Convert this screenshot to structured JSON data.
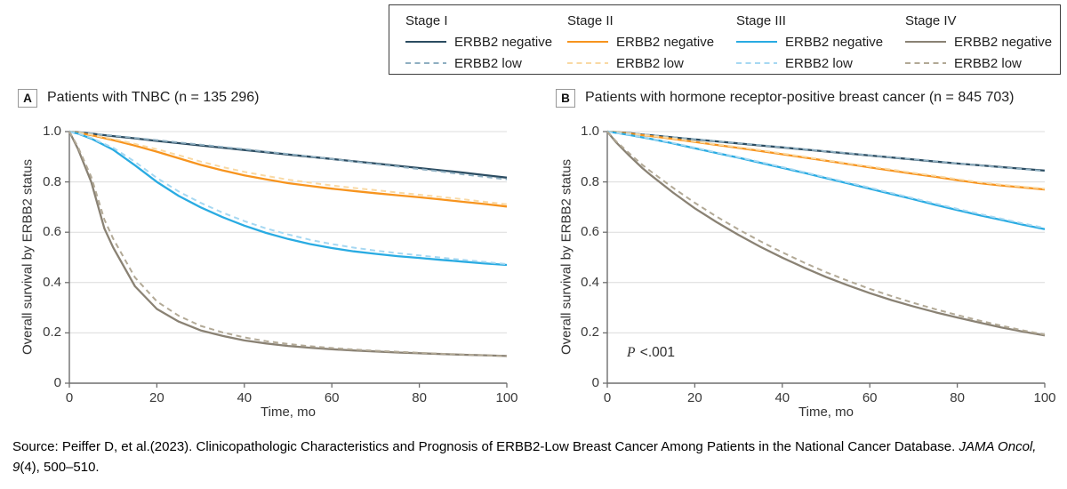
{
  "legend": {
    "groups": [
      {
        "stage": "Stage I",
        "negative_label": "ERBB2 negative",
        "low_label": "ERBB2 low",
        "negative_color": "#2b4c61",
        "low_color": "#8fafc1"
      },
      {
        "stage": "Stage II",
        "negative_label": "ERBB2 negative",
        "low_label": "ERBB2 low",
        "negative_color": "#f7941e",
        "low_color": "#f9d9a4"
      },
      {
        "stage": "Stage III",
        "negative_label": "ERBB2 negative",
        "low_label": "ERBB2 low",
        "negative_color": "#29abe2",
        "low_color": "#a6d8f2"
      },
      {
        "stage": "Stage IV",
        "negative_label": "ERBB2 negative",
        "low_label": "ERBB2 low",
        "negative_color": "#8a8274",
        "low_color": "#b2a996"
      }
    ]
  },
  "panels": [
    {
      "label": "A",
      "title": "Patients with TNBC (n = 135 296)",
      "p_italic": "",
      "p_rest": ""
    },
    {
      "label": "B",
      "title": "Patients with hormone receptor-positive breast cancer (n = 845 703)",
      "p_italic": "P",
      "p_rest": " <.001"
    }
  ],
  "axes": {
    "ylabel": "Overall survival by ERBB2 status",
    "xlabel": "Time, mo",
    "yticks": [
      {
        "label": "1.0",
        "value": 1.0
      },
      {
        "label": "0.8",
        "value": 0.8
      },
      {
        "label": "0.6",
        "value": 0.6
      },
      {
        "label": "0.4",
        "value": 0.4
      },
      {
        "label": "0.2",
        "value": 0.2
      },
      {
        "label": "0",
        "value": 0
      }
    ],
    "xticks": [
      {
        "label": "0",
        "value": 0
      },
      {
        "label": "20",
        "value": 20
      },
      {
        "label": "40",
        "value": 40
      },
      {
        "label": "60",
        "value": 60
      },
      {
        "label": "80",
        "value": 80
      },
      {
        "label": "100",
        "value": 100
      }
    ],
    "grid_color": "#dcdcdc",
    "axis_color": "#6e6e6e"
  },
  "chart_data": [
    {
      "type": "line",
      "panel": "A",
      "title": "Patients with TNBC (n = 135 296)",
      "xlabel": "Time, mo",
      "ylabel": "Overall survival by ERBB2 status",
      "xlim": [
        0,
        100
      ],
      "ylim": [
        0,
        1.0
      ],
      "grid": true,
      "annotation": "",
      "x": [
        0,
        2,
        5,
        8,
        10,
        15,
        20,
        25,
        30,
        35,
        40,
        45,
        50,
        55,
        60,
        65,
        70,
        75,
        80,
        85,
        90,
        95,
        100
      ],
      "series": [
        {
          "name": "Stage I ERBB2 negative",
          "color": "#2b4c61",
          "dash": false,
          "values": [
            1.0,
            0.997,
            0.992,
            0.986,
            0.982,
            0.973,
            0.963,
            0.954,
            0.945,
            0.936,
            0.927,
            0.918,
            0.909,
            0.9,
            0.891,
            0.882,
            0.873,
            0.864,
            0.855,
            0.846,
            0.837,
            0.827,
            0.817
          ]
        },
        {
          "name": "Stage I ERBB2 low",
          "color": "#8fafc1",
          "dash": true,
          "values": [
            1.0,
            0.997,
            0.993,
            0.987,
            0.984,
            0.975,
            0.966,
            0.957,
            0.948,
            0.939,
            0.93,
            0.92,
            0.911,
            0.901,
            0.891,
            0.881,
            0.871,
            0.861,
            0.851,
            0.841,
            0.83,
            0.82,
            0.81
          ]
        },
        {
          "name": "Stage II ERBB2 negative",
          "color": "#f7941e",
          "dash": false,
          "values": [
            1.0,
            0.995,
            0.986,
            0.974,
            0.966,
            0.944,
            0.92,
            0.894,
            0.868,
            0.846,
            0.826,
            0.81,
            0.795,
            0.784,
            0.773,
            0.764,
            0.755,
            0.747,
            0.739,
            0.73,
            0.721,
            0.712,
            0.702
          ]
        },
        {
          "name": "Stage II ERBB2 low",
          "color": "#f9d9a4",
          "dash": true,
          "values": [
            1.0,
            0.996,
            0.988,
            0.977,
            0.971,
            0.951,
            0.93,
            0.906,
            0.881,
            0.859,
            0.84,
            0.824,
            0.809,
            0.797,
            0.786,
            0.776,
            0.767,
            0.758,
            0.749,
            0.74,
            0.731,
            0.721,
            0.711
          ]
        },
        {
          "name": "Stage III ERBB2 negative",
          "color": "#29abe2",
          "dash": false,
          "values": [
            1.0,
            0.992,
            0.972,
            0.946,
            0.928,
            0.866,
            0.8,
            0.744,
            0.699,
            0.66,
            0.626,
            0.597,
            0.573,
            0.553,
            0.537,
            0.524,
            0.514,
            0.505,
            0.498,
            0.49,
            0.483,
            0.476,
            0.47
          ]
        },
        {
          "name": "Stage III ERBB2 low",
          "color": "#a6d8f2",
          "dash": true,
          "values": [
            1.0,
            0.993,
            0.975,
            0.951,
            0.936,
            0.88,
            0.816,
            0.762,
            0.717,
            0.678,
            0.644,
            0.615,
            0.591,
            0.57,
            0.553,
            0.539,
            0.527,
            0.517,
            0.508,
            0.499,
            0.49,
            0.482,
            0.473
          ]
        },
        {
          "name": "Stage IV ERBB2 negative",
          "color": "#8a8274",
          "dash": false,
          "values": [
            1.0,
            0.93,
            0.8,
            0.615,
            0.54,
            0.385,
            0.295,
            0.245,
            0.21,
            0.188,
            0.17,
            0.158,
            0.148,
            0.141,
            0.135,
            0.13,
            0.126,
            0.122,
            0.119,
            0.116,
            0.113,
            0.111,
            0.108
          ]
        },
        {
          "name": "Stage IV ERBB2 low",
          "color": "#b2a996",
          "dash": true,
          "values": [
            1.0,
            0.938,
            0.82,
            0.65,
            0.575,
            0.42,
            0.325,
            0.268,
            0.228,
            0.202,
            0.182,
            0.167,
            0.156,
            0.147,
            0.14,
            0.134,
            0.129,
            0.125,
            0.121,
            0.117,
            0.114,
            0.111,
            0.107
          ]
        }
      ]
    },
    {
      "type": "line",
      "panel": "B",
      "title": "Patients with hormone receptor-positive breast cancer (n = 845 703)",
      "xlabel": "Time, mo",
      "ylabel": "Overall survival by ERBB2 status",
      "xlim": [
        0,
        100
      ],
      "ylim": [
        0,
        1.0
      ],
      "grid": true,
      "annotation": "P <.001",
      "x": [
        0,
        2,
        5,
        8,
        10,
        15,
        20,
        25,
        30,
        35,
        40,
        45,
        50,
        55,
        60,
        65,
        70,
        75,
        80,
        85,
        90,
        95,
        100
      ],
      "series": [
        {
          "name": "Stage I ERBB2 negative",
          "color": "#2b4c61",
          "dash": false,
          "values": [
            1.0,
            0.998,
            0.994,
            0.988,
            0.985,
            0.977,
            0.969,
            0.961,
            0.953,
            0.945,
            0.937,
            0.929,
            0.921,
            0.913,
            0.905,
            0.897,
            0.889,
            0.881,
            0.873,
            0.866,
            0.859,
            0.852,
            0.845
          ]
        },
        {
          "name": "Stage I ERBB2 low",
          "color": "#8fafc1",
          "dash": true,
          "values": [
            1.0,
            0.998,
            0.994,
            0.989,
            0.986,
            0.978,
            0.97,
            0.962,
            0.954,
            0.946,
            0.938,
            0.93,
            0.922,
            0.914,
            0.906,
            0.898,
            0.89,
            0.882,
            0.874,
            0.866,
            0.858,
            0.851,
            0.843
          ]
        },
        {
          "name": "Stage II ERBB2 negative",
          "color": "#f7941e",
          "dash": false,
          "values": [
            1.0,
            0.997,
            0.992,
            0.986,
            0.982,
            0.971,
            0.959,
            0.947,
            0.935,
            0.923,
            0.91,
            0.897,
            0.884,
            0.871,
            0.858,
            0.845,
            0.832,
            0.82,
            0.807,
            0.795,
            0.786,
            0.778,
            0.77
          ]
        },
        {
          "name": "Stage II ERBB2 low",
          "color": "#f9d9a4",
          "dash": true,
          "values": [
            1.0,
            0.997,
            0.993,
            0.987,
            0.983,
            0.973,
            0.961,
            0.949,
            0.938,
            0.926,
            0.913,
            0.9,
            0.887,
            0.874,
            0.861,
            0.849,
            0.836,
            0.824,
            0.811,
            0.799,
            0.789,
            0.781,
            0.773
          ]
        },
        {
          "name": "Stage III ERBB2 negative",
          "color": "#29abe2",
          "dash": false,
          "values": [
            1.0,
            0.995,
            0.987,
            0.977,
            0.971,
            0.953,
            0.934,
            0.915,
            0.896,
            0.876,
            0.856,
            0.836,
            0.815,
            0.794,
            0.773,
            0.752,
            0.731,
            0.709,
            0.688,
            0.668,
            0.649,
            0.63,
            0.612
          ]
        },
        {
          "name": "Stage III ERBB2 low",
          "color": "#a6d8f2",
          "dash": true,
          "values": [
            1.0,
            0.995,
            0.988,
            0.978,
            0.972,
            0.955,
            0.936,
            0.917,
            0.898,
            0.879,
            0.859,
            0.839,
            0.818,
            0.798,
            0.777,
            0.756,
            0.735,
            0.714,
            0.693,
            0.673,
            0.654,
            0.635,
            0.617
          ]
        },
        {
          "name": "Stage IV ERBB2 negative",
          "color": "#8a8274",
          "dash": false,
          "values": [
            1.0,
            0.958,
            0.905,
            0.855,
            0.826,
            0.758,
            0.695,
            0.64,
            0.589,
            0.542,
            0.499,
            0.459,
            0.422,
            0.389,
            0.358,
            0.33,
            0.305,
            0.282,
            0.261,
            0.241,
            0.222,
            0.205,
            0.19
          ]
        },
        {
          "name": "Stage IV ERBB2 low",
          "color": "#b2a996",
          "dash": true,
          "values": [
            1.0,
            0.962,
            0.914,
            0.868,
            0.841,
            0.777,
            0.717,
            0.662,
            0.611,
            0.564,
            0.52,
            0.479,
            0.441,
            0.407,
            0.375,
            0.346,
            0.319,
            0.294,
            0.271,
            0.249,
            0.229,
            0.21,
            0.193
          ]
        }
      ]
    }
  ],
  "source": {
    "part1": "Source: Peiffer D, et al.(2023). Clinicopathologic Characteristics and Prognosis of ERBB2-Low Breast Cancer Among Patients in the National Cancer Database. ",
    "italic": "JAMA Oncol, 9",
    "part2": "(4), 500–510."
  }
}
